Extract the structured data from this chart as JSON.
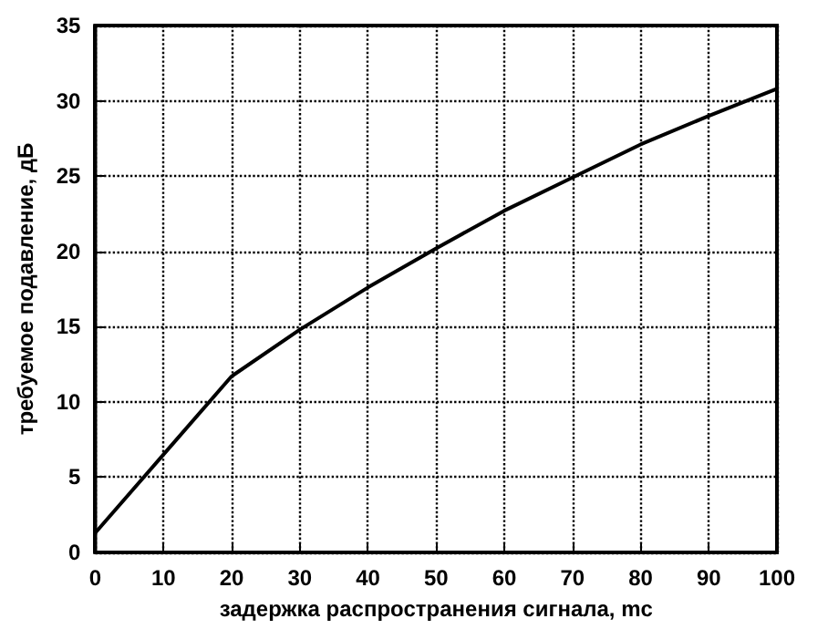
{
  "chart_data": {
    "type": "line",
    "xlabel": "задержка распространения сигнала, mc",
    "ylabel": "требуемое подавление, дБ",
    "x": [
      0,
      10,
      20,
      30,
      40,
      50,
      60,
      70,
      80,
      90,
      100
    ],
    "series": [
      {
        "color": "#000000",
        "values": [
          1.3,
          6.5,
          11.7,
          14.8,
          17.6,
          20.2,
          22.7,
          24.9,
          27.1,
          29.0,
          30.8
        ]
      }
    ],
    "xlim": [
      0,
      100
    ],
    "xticks": [
      0,
      10,
      20,
      30,
      40,
      50,
      60,
      70,
      80,
      90,
      100
    ],
    "ylim": [
      0,
      35
    ],
    "yticks": [
      0,
      5,
      10,
      15,
      20,
      25,
      30,
      35
    ],
    "grid": true,
    "marker": "none",
    "line_style": "solid"
  }
}
